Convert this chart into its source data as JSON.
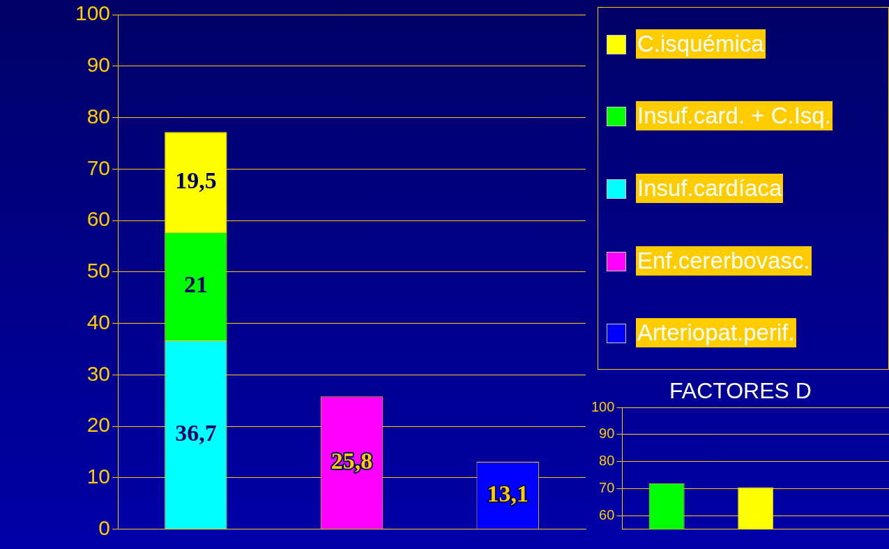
{
  "chart_data": [
    {
      "type": "bar",
      "stacked": true,
      "categories": [
        null,
        null,
        null
      ],
      "ylim": [
        0,
        100
      ],
      "yticks": [
        0,
        10,
        20,
        30,
        40,
        50,
        60,
        70,
        80,
        90,
        100
      ],
      "grid": "y",
      "legend": "top right",
      "series": [
        {
          "name": "Arteriopat.perif.",
          "color": "#0000ff",
          "values": [
            null,
            null,
            13.1
          ],
          "value_labels": [
            null,
            null,
            "13,1"
          ]
        },
        {
          "name": "Enf.cererbovasc.",
          "color": "#ff00ff",
          "values": [
            null,
            25.8,
            null
          ],
          "value_labels": [
            null,
            "25,8",
            null
          ]
        },
        {
          "name": "Insuf.cardíaca",
          "color": "#00ffff",
          "values": [
            36.7,
            null,
            null
          ],
          "value_labels": [
            "36,7",
            null,
            null
          ]
        },
        {
          "name": "Insuf.card. + C.Isq.",
          "color": "#00ff00",
          "values": [
            21,
            null,
            null
          ],
          "value_labels": [
            "21",
            null,
            null
          ]
        },
        {
          "name": "C.isquémica",
          "color": "#ffff00",
          "values": [
            19.5,
            null,
            null
          ],
          "value_labels": [
            "19,5",
            null,
            null
          ]
        }
      ]
    },
    {
      "type": "bar",
      "title": "FACTORES D",
      "categories": [
        null,
        null,
        null
      ],
      "ylim": [
        55,
        100
      ],
      "yticks": [
        60,
        70,
        80,
        90,
        100
      ],
      "grid": "y",
      "values": [
        72,
        70.5,
        null
      ],
      "colors": [
        "#00ff00",
        "#ffff00",
        "#00ff00"
      ]
    }
  ]
}
